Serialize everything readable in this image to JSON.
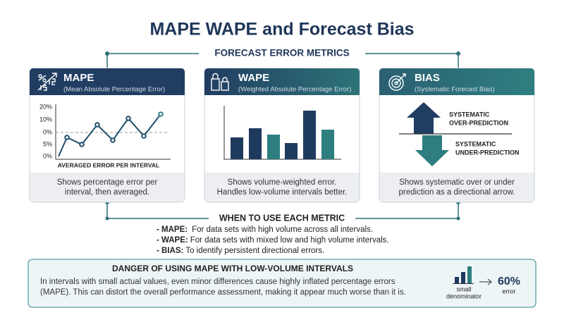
{
  "title": "MAPE WAPE and Forecast Bias",
  "section_label": "FORECAST ERROR METRICS",
  "cards": [
    {
      "title": "MAPE",
      "subtitle": "(Mean Absolute Percentage Error)",
      "axis_labels": [
        "20%",
        "10%",
        "0%",
        "5%",
        "0%"
      ],
      "caption": "AVERAGED ERROR PER INTERVAL",
      "description": [
        "Shows percentage error per",
        "interval, then averaged."
      ]
    },
    {
      "title": "WAPE",
      "subtitle": "(Weighted Absolute Percentage Error)",
      "description": [
        "Shows volume-weighted error.",
        "Handles low-volume intervals better."
      ]
    },
    {
      "title": "BIAS",
      "subtitle": "(Systematic Forecast Bias)",
      "over_label": [
        "SYSTEMATIC",
        "OVER-PREDICTION"
      ],
      "under_label": [
        "SYSTEMATIC",
        "UNDER-PREDICTION"
      ],
      "description": [
        "Shows systematic over or under",
        "prediction as a directional arrow."
      ]
    }
  ],
  "usage": {
    "heading": "WHEN TO USE EACH METRIC",
    "items": [
      {
        "term": "- MAPE:",
        "text": "For data sets with high volume across all intervals."
      },
      {
        "term": "- WAPE:",
        "text": "For data sets with mixed low and high volume intervals."
      },
      {
        "term": "- BIAS:",
        "text": "To identify persistent directional errors."
      }
    ]
  },
  "danger": {
    "heading": "DANGER OF USING MAPE WITH LOW-VOLUME INTERVALS",
    "body": [
      "In intervals with small actual values, even minor differences cause highly inflated percentage errors",
      "(MAPE). This can distort the overall performance assessment, making it appear much worse than it is."
    ],
    "denominator_label": [
      "small",
      "denominator"
    ],
    "error_value": "60%",
    "error_label": "error"
  }
}
